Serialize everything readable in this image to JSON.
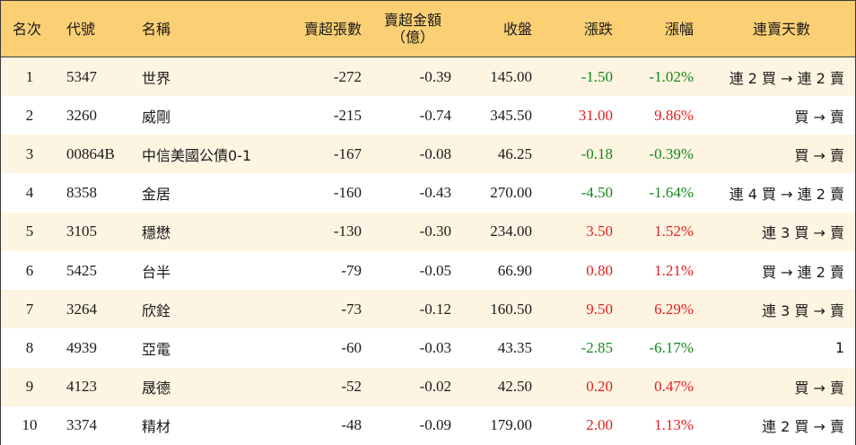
{
  "headers": {
    "rank": "名次",
    "code": "代號",
    "name": "名稱",
    "sell_volume": "賣超張數",
    "sell_amount_line1": "賣超金額",
    "sell_amount_line2": "（億）",
    "close": "收盤",
    "change": "漲跌",
    "change_pct": "漲幅",
    "streak": "連賣天數"
  },
  "colors": {
    "header_bg": "#fbcf73",
    "odd_row_bg": "#fef4e2",
    "up": "#e0201f",
    "down": "#13881a"
  },
  "rows": [
    {
      "rank": "1",
      "code": "5347",
      "name": "世界",
      "sell_volume": "-272",
      "sell_amount": "-0.39",
      "close": "145.00",
      "change": "-1.50",
      "change_pct": "-1.02%",
      "dir": "down",
      "streak": "連 2 買 → 連 2 賣"
    },
    {
      "rank": "2",
      "code": "3260",
      "name": "威剛",
      "sell_volume": "-215",
      "sell_amount": "-0.74",
      "close": "345.50",
      "change": "31.00",
      "change_pct": "9.86%",
      "dir": "up",
      "streak": "買 → 賣"
    },
    {
      "rank": "3",
      "code": "00864B",
      "name": "中信美國公債0-1",
      "sell_volume": "-167",
      "sell_amount": "-0.08",
      "close": "46.25",
      "change": "-0.18",
      "change_pct": "-0.39%",
      "dir": "down",
      "streak": "買 → 賣"
    },
    {
      "rank": "4",
      "code": "8358",
      "name": "金居",
      "sell_volume": "-160",
      "sell_amount": "-0.43",
      "close": "270.00",
      "change": "-4.50",
      "change_pct": "-1.64%",
      "dir": "down",
      "streak": "連 4 買 → 連 2 賣"
    },
    {
      "rank": "5",
      "code": "3105",
      "name": "穩懋",
      "sell_volume": "-130",
      "sell_amount": "-0.30",
      "close": "234.00",
      "change": "3.50",
      "change_pct": "1.52%",
      "dir": "up",
      "streak": "連 3 買 → 賣"
    },
    {
      "rank": "6",
      "code": "5425",
      "name": "台半",
      "sell_volume": "-79",
      "sell_amount": "-0.05",
      "close": "66.90",
      "change": "0.80",
      "change_pct": "1.21%",
      "dir": "up",
      "streak": "買 → 連 2 賣"
    },
    {
      "rank": "7",
      "code": "3264",
      "name": "欣銓",
      "sell_volume": "-73",
      "sell_amount": "-0.12",
      "close": "160.50",
      "change": "9.50",
      "change_pct": "6.29%",
      "dir": "up",
      "streak": "連 3 買 → 賣"
    },
    {
      "rank": "8",
      "code": "4939",
      "name": "亞電",
      "sell_volume": "-60",
      "sell_amount": "-0.03",
      "close": "43.35",
      "change": "-2.85",
      "change_pct": "-6.17%",
      "dir": "down",
      "streak": "1"
    },
    {
      "rank": "9",
      "code": "4123",
      "name": "晟德",
      "sell_volume": "-52",
      "sell_amount": "-0.02",
      "close": "42.50",
      "change": "0.20",
      "change_pct": "0.47%",
      "dir": "up",
      "streak": "買 → 賣"
    },
    {
      "rank": "10",
      "code": "3374",
      "name": "精材",
      "sell_volume": "-48",
      "sell_amount": "-0.09",
      "close": "179.00",
      "change": "2.00",
      "change_pct": "1.13%",
      "dir": "up",
      "streak": "連 2 買 → 賣"
    }
  ]
}
